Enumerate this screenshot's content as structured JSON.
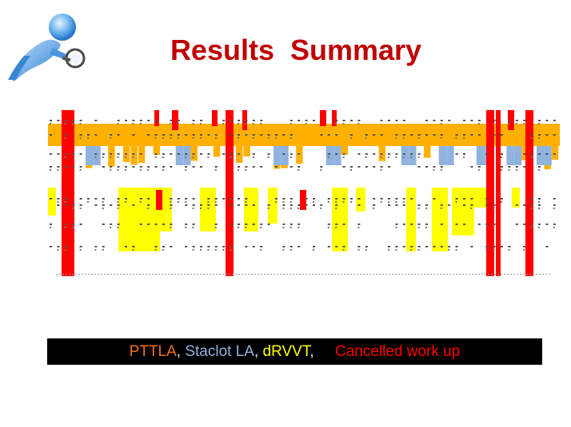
{
  "title": "Results  Summary",
  "logo_icon": "person-magnifier-icon",
  "legend": [
    {
      "text": "PTTLA",
      "color": "#f07020"
    },
    {
      "text": ", ",
      "color": "#e0e0e0"
    },
    {
      "text": "Staclot LA",
      "color": "#8fb3de"
    },
    {
      "text": ", ",
      "color": "#e0e0e0"
    },
    {
      "text": "dRVVT",
      "color": "#ffff00"
    },
    {
      "text": ",     ",
      "color": "#e0e0e0"
    },
    {
      "text": "Cancelled work up",
      "color": "#ff0000"
    }
  ],
  "colors": {
    "title": "#c00000",
    "pttla": "#ffb000",
    "staclot": "#8fb3de",
    "drvvt": "#ffff00",
    "cancelled": "#ff0000"
  }
}
